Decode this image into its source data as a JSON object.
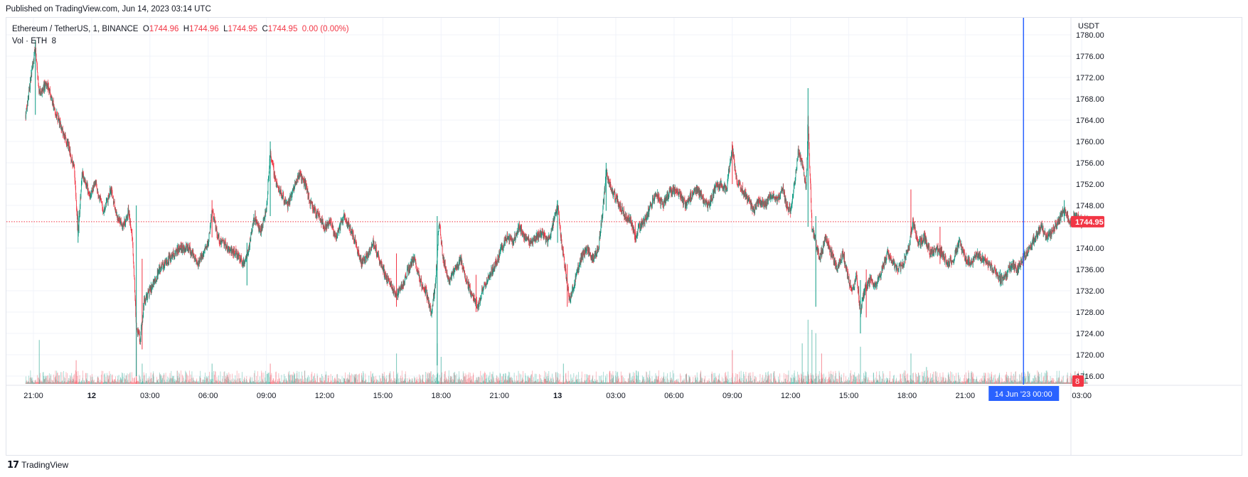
{
  "published": "Published on TradingView.com, Jun 14, 2023 03:14 UTC",
  "legend": {
    "symbol": "Ethereum / TetherUS, 1, BINANCE",
    "o_label": "O",
    "o": "1744.96",
    "h_label": "H",
    "h": "1744.96",
    "l_label": "L",
    "l": "1744.95",
    "c_label": "C",
    "c": "1744.95",
    "change": "0.00 (0.00%)",
    "vol_label": "Vol · ETH",
    "vol_value": "8"
  },
  "brand": {
    "name": "TradingView"
  },
  "colors": {
    "up": "#089981",
    "down": "#f23645",
    "crosshair": "#2962ff",
    "grid": "#f0f3fa"
  },
  "chart_data": {
    "type": "candlestick",
    "currency": "USDT",
    "y_ticks": [
      "1716.00",
      "1720.00",
      "1724.00",
      "1728.00",
      "1732.00",
      "1736.00",
      "1740.00",
      "1744.00",
      "1748.00",
      "1752.00",
      "1756.00",
      "1760.00",
      "1764.00",
      "1768.00",
      "1772.00",
      "1776.00",
      "1780.00"
    ],
    "ylim": [
      1714.4,
      1783.2
    ],
    "x_ticks": [
      {
        "label": "21:00",
        "h": 0
      },
      {
        "label": "12",
        "h": 3,
        "bold": true
      },
      {
        "label": "03:00",
        "h": 6
      },
      {
        "label": "06:00",
        "h": 9
      },
      {
        "label": "09:00",
        "h": 12
      },
      {
        "label": "12:00",
        "h": 15
      },
      {
        "label": "15:00",
        "h": 18
      },
      {
        "label": "18:00",
        "h": 21
      },
      {
        "label": "21:00",
        "h": 24
      },
      {
        "label": "13",
        "h": 27,
        "bold": true
      },
      {
        "label": "03:00",
        "h": 30
      },
      {
        "label": "06:00",
        "h": 33
      },
      {
        "label": "09:00",
        "h": 36
      },
      {
        "label": "12:00",
        "h": 39
      },
      {
        "label": "15:00",
        "h": 42
      },
      {
        "label": "18:00",
        "h": 45
      },
      {
        "label": "21:00",
        "h": 48
      },
      {
        "label": "03:00",
        "h": 54
      }
    ],
    "crosshair_label": "14 Jun '23   00:00",
    "crosshair_h": 51,
    "last_price": "1744.95",
    "last_volume": "8",
    "price_path": [
      [
        -0.4,
        1765
      ],
      [
        -0.2,
        1770
      ],
      [
        0.1,
        1778
      ],
      [
        0.3,
        1769
      ],
      [
        0.7,
        1771
      ],
      [
        1.0,
        1767
      ],
      [
        1.4,
        1763
      ],
      [
        1.8,
        1759
      ],
      [
        2.1,
        1755
      ],
      [
        2.3,
        1742
      ],
      [
        2.5,
        1754
      ],
      [
        2.9,
        1750
      ],
      [
        3.2,
        1752
      ],
      [
        3.6,
        1747
      ],
      [
        4.0,
        1751
      ],
      [
        4.3,
        1746
      ],
      [
        4.6,
        1744
      ],
      [
        4.9,
        1747
      ],
      [
        5.1,
        1742
      ],
      [
        5.3,
        1725
      ],
      [
        5.5,
        1723
      ],
      [
        5.7,
        1730
      ],
      [
        6.0,
        1732
      ],
      [
        6.5,
        1736
      ],
      [
        7.0,
        1738
      ],
      [
        7.5,
        1740
      ],
      [
        8.0,
        1740
      ],
      [
        8.5,
        1737
      ],
      [
        9.0,
        1741
      ],
      [
        9.2,
        1747
      ],
      [
        9.5,
        1742
      ],
      [
        10.0,
        1740
      ],
      [
        10.5,
        1739
      ],
      [
        10.8,
        1737
      ],
      [
        11.1,
        1740
      ],
      [
        11.4,
        1746
      ],
      [
        11.7,
        1743
      ],
      [
        12.0,
        1747
      ],
      [
        12.2,
        1758
      ],
      [
        12.5,
        1752
      ],
      [
        12.8,
        1750
      ],
      [
        13.1,
        1748
      ],
      [
        13.4,
        1751
      ],
      [
        13.7,
        1754
      ],
      [
        14.0,
        1752
      ],
      [
        14.3,
        1748
      ],
      [
        14.7,
        1746
      ],
      [
        15.0,
        1744
      ],
      [
        15.3,
        1745
      ],
      [
        15.6,
        1742
      ],
      [
        16.0,
        1746
      ],
      [
        16.3,
        1744
      ],
      [
        16.6,
        1741
      ],
      [
        16.9,
        1737
      ],
      [
        17.2,
        1739
      ],
      [
        17.5,
        1741
      ],
      [
        17.8,
        1738
      ],
      [
        18.1,
        1735
      ],
      [
        18.4,
        1733
      ],
      [
        18.7,
        1731
      ],
      [
        19.0,
        1733
      ],
      [
        19.3,
        1736
      ],
      [
        19.6,
        1738
      ],
      [
        19.9,
        1734
      ],
      [
        20.2,
        1732
      ],
      [
        20.5,
        1728
      ],
      [
        20.7,
        1733
      ],
      [
        20.9,
        1745
      ],
      [
        21.1,
        1738
      ],
      [
        21.4,
        1734
      ],
      [
        21.7,
        1736
      ],
      [
        22.0,
        1738
      ],
      [
        22.3,
        1734
      ],
      [
        22.6,
        1731
      ],
      [
        22.9,
        1729
      ],
      [
        23.2,
        1733
      ],
      [
        23.5,
        1735
      ],
      [
        23.8,
        1737
      ],
      [
        24.1,
        1740
      ],
      [
        24.4,
        1742
      ],
      [
        24.7,
        1741
      ],
      [
        25.0,
        1744
      ],
      [
        25.3,
        1742
      ],
      [
        25.6,
        1741
      ],
      [
        25.9,
        1742
      ],
      [
        26.2,
        1743
      ],
      [
        26.5,
        1741
      ],
      [
        26.8,
        1745
      ],
      [
        27.0,
        1748
      ],
      [
        27.2,
        1741
      ],
      [
        27.4,
        1736
      ],
      [
        27.6,
        1730
      ],
      [
        27.9,
        1734
      ],
      [
        28.2,
        1738
      ],
      [
        28.5,
        1740
      ],
      [
        28.8,
        1738
      ],
      [
        29.1,
        1740
      ],
      [
        29.3,
        1746
      ],
      [
        29.5,
        1754
      ],
      [
        29.7,
        1752
      ],
      [
        29.9,
        1750
      ],
      [
        30.2,
        1748
      ],
      [
        30.5,
        1746
      ],
      [
        30.8,
        1745
      ],
      [
        31.0,
        1742
      ],
      [
        31.2,
        1744
      ],
      [
        31.5,
        1745
      ],
      [
        31.8,
        1748
      ],
      [
        32.1,
        1750
      ],
      [
        32.4,
        1748
      ],
      [
        32.7,
        1750
      ],
      [
        33.0,
        1751
      ],
      [
        33.3,
        1750
      ],
      [
        33.6,
        1748
      ],
      [
        33.9,
        1750
      ],
      [
        34.2,
        1751
      ],
      [
        34.5,
        1749
      ],
      [
        34.8,
        1748
      ],
      [
        35.1,
        1751
      ],
      [
        35.4,
        1752
      ],
      [
        35.7,
        1751
      ],
      [
        36.0,
        1759
      ],
      [
        36.2,
        1753
      ],
      [
        36.5,
        1751
      ],
      [
        36.8,
        1749
      ],
      [
        37.1,
        1747
      ],
      [
        37.4,
        1749
      ],
      [
        37.7,
        1748
      ],
      [
        38.0,
        1750
      ],
      [
        38.3,
        1749
      ],
      [
        38.6,
        1751
      ],
      [
        38.8,
        1748
      ],
      [
        39.0,
        1747
      ],
      [
        39.2,
        1752
      ],
      [
        39.4,
        1758
      ],
      [
        39.6,
        1756
      ],
      [
        39.8,
        1751
      ],
      [
        39.9,
        1764
      ],
      [
        40.1,
        1744
      ],
      [
        40.3,
        1741
      ],
      [
        40.5,
        1738
      ],
      [
        40.8,
        1742
      ],
      [
        41.1,
        1739
      ],
      [
        41.4,
        1736
      ],
      [
        41.7,
        1739
      ],
      [
        42.0,
        1734
      ],
      [
        42.2,
        1732
      ],
      [
        42.4,
        1735
      ],
      [
        42.6,
        1728
      ],
      [
        42.8,
        1732
      ],
      [
        43.1,
        1734
      ],
      [
        43.4,
        1733
      ],
      [
        43.7,
        1736
      ],
      [
        44.0,
        1739
      ],
      [
        44.3,
        1737
      ],
      [
        44.6,
        1736
      ],
      [
        44.9,
        1738
      ],
      [
        45.1,
        1740
      ],
      [
        45.3,
        1745
      ],
      [
        45.6,
        1741
      ],
      [
        45.9,
        1742
      ],
      [
        46.2,
        1739
      ],
      [
        46.5,
        1740
      ],
      [
        46.8,
        1739
      ],
      [
        47.1,
        1737
      ],
      [
        47.4,
        1738
      ],
      [
        47.7,
        1741
      ],
      [
        48.0,
        1738
      ],
      [
        48.3,
        1737
      ],
      [
        48.6,
        1739
      ],
      [
        48.9,
        1738
      ],
      [
        49.2,
        1737
      ],
      [
        49.5,
        1736
      ],
      [
        49.8,
        1734
      ],
      [
        50.1,
        1735
      ],
      [
        50.4,
        1737
      ],
      [
        50.7,
        1736
      ],
      [
        51.0,
        1738
      ],
      [
        51.3,
        1740
      ],
      [
        51.6,
        1742
      ],
      [
        51.9,
        1744
      ],
      [
        52.2,
        1742
      ],
      [
        52.5,
        1743
      ],
      [
        52.8,
        1745
      ],
      [
        53.1,
        1747
      ],
      [
        53.4,
        1745
      ],
      [
        53.7,
        1746
      ],
      [
        54.0,
        1745
      ],
      [
        54.3,
        1744.95
      ]
    ],
    "spikes": [
      {
        "h": 0.1,
        "hi": 1779,
        "lo": 1765
      },
      {
        "h": 2.3,
        "hi": 1747,
        "lo": 1741
      },
      {
        "h": 5.3,
        "hi": 1748,
        "lo": 1716
      },
      {
        "h": 5.6,
        "hi": 1738,
        "lo": 1721
      },
      {
        "h": 9.2,
        "hi": 1749,
        "lo": 1742
      },
      {
        "h": 12.2,
        "hi": 1760,
        "lo": 1746
      },
      {
        "h": 11.0,
        "hi": 1741,
        "lo": 1733
      },
      {
        "h": 18.7,
        "hi": 1739,
        "lo": 1729
      },
      {
        "h": 20.8,
        "hi": 1746,
        "lo": 1718
      },
      {
        "h": 22.8,
        "hi": 1735,
        "lo": 1728
      },
      {
        "h": 27.0,
        "hi": 1749,
        "lo": 1741
      },
      {
        "h": 27.5,
        "hi": 1737,
        "lo": 1729
      },
      {
        "h": 29.5,
        "hi": 1756,
        "lo": 1747
      },
      {
        "h": 31.0,
        "hi": 1745,
        "lo": 1741
      },
      {
        "h": 36.0,
        "hi": 1760,
        "lo": 1752
      },
      {
        "h": 39.9,
        "hi": 1770,
        "lo": 1744
      },
      {
        "h": 40.3,
        "hi": 1746,
        "lo": 1729
      },
      {
        "h": 42.6,
        "hi": 1734,
        "lo": 1724
      },
      {
        "h": 42.9,
        "hi": 1736,
        "lo": 1727
      },
      {
        "h": 45.2,
        "hi": 1751,
        "lo": 1742
      },
      {
        "h": 46.7,
        "hi": 1744,
        "lo": 1737
      },
      {
        "h": 49.8,
        "hi": 1736,
        "lo": 1733
      },
      {
        "h": 53.1,
        "hi": 1749,
        "lo": 1745
      }
    ],
    "volume_spikes": [
      {
        "h": 0.3,
        "v": 0.65
      },
      {
        "h": 2.2,
        "v": 0.35
      },
      {
        "h": 5.3,
        "v": 0.75
      },
      {
        "h": 5.6,
        "v": 0.3
      },
      {
        "h": 9.2,
        "v": 0.3
      },
      {
        "h": 12.2,
        "v": 0.3
      },
      {
        "h": 18.7,
        "v": 0.45
      },
      {
        "h": 20.8,
        "v": 0.6
      },
      {
        "h": 21.0,
        "v": 0.4
      },
      {
        "h": 27.3,
        "v": 0.3
      },
      {
        "h": 36.0,
        "v": 0.5
      },
      {
        "h": 39.6,
        "v": 0.6
      },
      {
        "h": 39.9,
        "v": 0.95
      },
      {
        "h": 40.1,
        "v": 0.8
      },
      {
        "h": 40.3,
        "v": 0.75
      },
      {
        "h": 40.6,
        "v": 0.45
      },
      {
        "h": 42.6,
        "v": 0.55
      },
      {
        "h": 45.2,
        "v": 0.45
      },
      {
        "h": 46.0,
        "v": 0.25
      }
    ]
  }
}
